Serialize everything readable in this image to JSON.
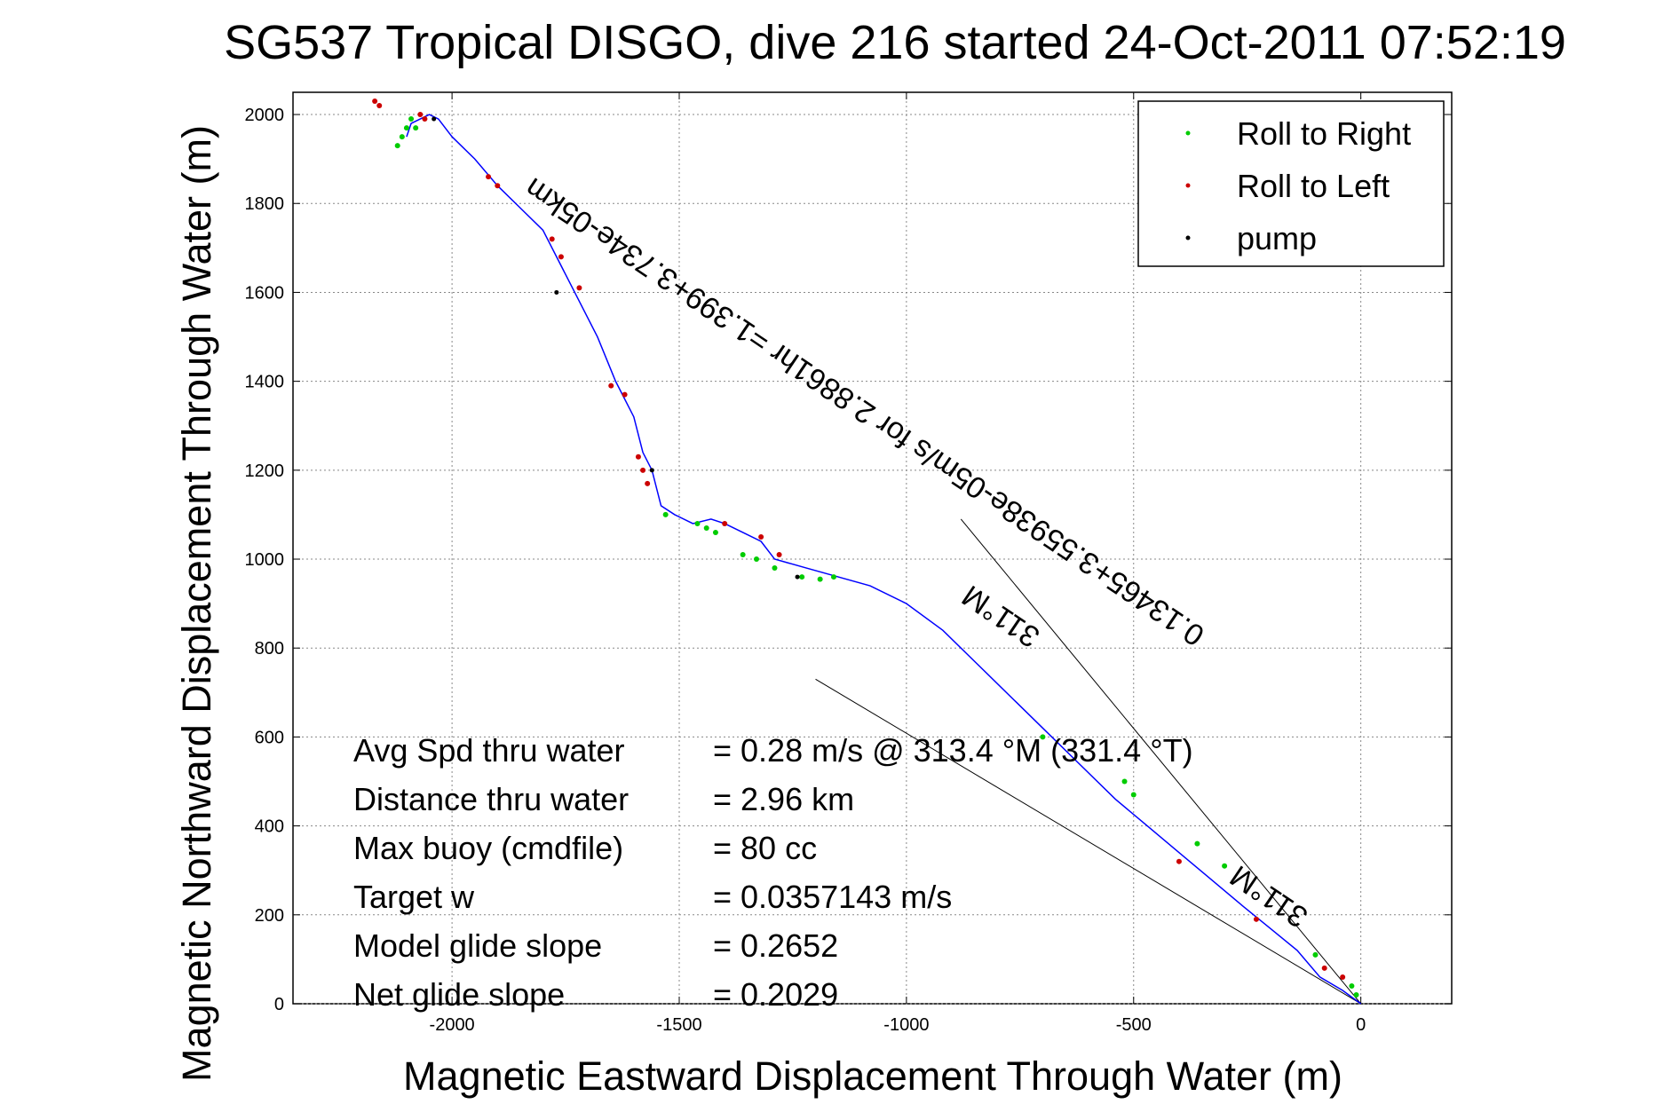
{
  "chart_data": {
    "type": "line",
    "title": "SG537 Tropical DISGO, dive 216 started 24-Oct-2011 07:52:19",
    "xlabel": "Magnetic Eastward Displacement Through Water (m)",
    "ylabel": "Magnetic Northward Displacement Through Water (m)",
    "xlim": [
      -2350,
      200
    ],
    "ylim": [
      0,
      2050
    ],
    "xticks": [
      -2000,
      -1500,
      -1000,
      -500,
      0
    ],
    "yticks": [
      0,
      200,
      400,
      600,
      800,
      1000,
      1200,
      1400,
      1600,
      1800,
      2000
    ],
    "xtick_labels": [
      "-2000",
      "-1500",
      "-1000",
      "-500",
      "0"
    ],
    "ytick_labels": [
      "0",
      "200",
      "400",
      "600",
      "800",
      "1000",
      "1200",
      "1400",
      "1600",
      "1800",
      "2000"
    ],
    "grid": true,
    "colors": {
      "track": "#0000ff",
      "roll_right": "#00cc00",
      "roll_left": "#cc0000",
      "pump": "#000000",
      "vector": "#000000"
    },
    "track": {
      "x": [
        0,
        -40,
        -90,
        -140,
        -200,
        -260,
        -330,
        -400,
        -470,
        -540,
        -610,
        -680,
        -760,
        -840,
        -920,
        -1000,
        -1080,
        -1150,
        -1220,
        -1290,
        -1320,
        -1360,
        -1400,
        -1430,
        -1470,
        -1510,
        -1540,
        -1560,
        -1580,
        -1600,
        -1640,
        -1680,
        -1720,
        -1760,
        -1800,
        -1850,
        -1900,
        -1950,
        -2000,
        -2030,
        -2050,
        -2070,
        -2090,
        -2100
      ],
      "y": [
        0,
        30,
        60,
        120,
        170,
        220,
        280,
        340,
        400,
        460,
        530,
        600,
        680,
        760,
        840,
        900,
        940,
        960,
        980,
        1000,
        1040,
        1060,
        1080,
        1090,
        1080,
        1100,
        1120,
        1200,
        1240,
        1320,
        1400,
        1500,
        1580,
        1660,
        1740,
        1790,
        1840,
        1900,
        1950,
        1990,
        2000,
        1990,
        1980,
        1950
      ]
    },
    "roll_to_right": {
      "x": [
        -10,
        -20,
        -100,
        -300,
        -360,
        -500,
        -520,
        -700,
        -1160,
        -1190,
        -1230,
        -1290,
        -1330,
        -1360,
        -1420,
        -1440,
        -1460,
        -1530,
        -2080,
        -2090,
        -2100,
        -2110,
        -2120
      ],
      "y": [
        20,
        40,
        110,
        310,
        360,
        470,
        500,
        600,
        960,
        955,
        960,
        980,
        1000,
        1010,
        1060,
        1070,
        1080,
        1100,
        1970,
        1990,
        1970,
        1950,
        1930
      ]
    },
    "roll_to_left": {
      "x": [
        -40,
        -80,
        -230,
        -400,
        -1280,
        -1320,
        -1400,
        -1570,
        -1580,
        -1590,
        -1620,
        -1650,
        -1720,
        -1760,
        -1780,
        -1900,
        -1920,
        -2060,
        -2070,
        -2160,
        -2170
      ],
      "y": [
        60,
        80,
        190,
        320,
        1010,
        1050,
        1080,
        1170,
        1200,
        1230,
        1370,
        1390,
        1610,
        1680,
        1720,
        1840,
        1860,
        1990,
        2000,
        2020,
        2030
      ]
    },
    "pump": {
      "x": [
        -2040,
        -1770,
        -1560,
        -1240
      ],
      "y": [
        1990,
        1600,
        1200,
        960
      ]
    },
    "vectors": [
      {
        "label": "311°M",
        "x": [
          0,
          -880
        ],
        "y": [
          0,
          1090
        ]
      },
      {
        "label": "311°M",
        "x": [
          0,
          -1200
        ],
        "y": [
          0,
          730
        ]
      }
    ],
    "slope_labels": [
      {
        "text": "0.13465+3.55938e-05m/s for 2.8861hr =1.399+3.734e-05km",
        "x": -1080,
        "y": 1350,
        "rotation_deg": 214
      },
      {
        "text": "311°M",
        "x": -190,
        "y": 260,
        "rotation_deg": 214
      },
      {
        "text": "311°M",
        "x": -780,
        "y": 890,
        "rotation_deg": 214
      }
    ],
    "legend": {
      "position": "top-right",
      "entries": [
        {
          "label": "Roll to Right",
          "color": "#00cc00"
        },
        {
          "label": "Roll to Left",
          "color": "#cc0000"
        },
        {
          "label": "pump",
          "color": "#000000"
        }
      ]
    },
    "annotations": [
      {
        "label": "Avg Spd thru water",
        "value": "=  0.28 m/s @ 313.4 °M (331.4 °T)"
      },
      {
        "label": "Distance thru water",
        "value": "=  2.96 km"
      },
      {
        "label": "Max buoy (cmdfile)",
        "value": "= 80 cc"
      },
      {
        "label": "Target w",
        "value": "= 0.0357143 m/s"
      },
      {
        "label": "Model glide slope",
        "value": "= 0.2652"
      },
      {
        "label": "Net glide slope",
        "value": "= 0.2029"
      }
    ]
  }
}
